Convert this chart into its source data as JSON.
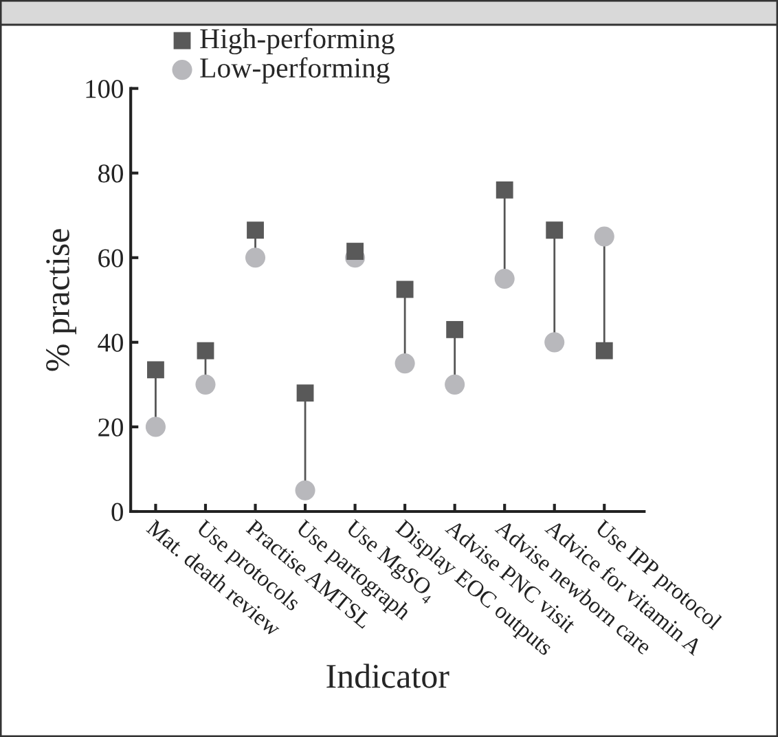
{
  "chart_data": {
    "type": "scatter",
    "xlabel": "Indicator",
    "ylabel": "% practise",
    "categories": [
      "Mat. death review",
      "Use protocols",
      "Practise AMTSL",
      "Use partograph",
      "Use MgSO₄",
      "Display EOC outputs",
      "Advise PNC visit",
      "Advise newborn care",
      "Advice for vitamin A",
      "Use IPP protocol"
    ],
    "series": [
      {
        "name": "High-performing",
        "color": "#595959",
        "marker": "square",
        "values": [
          33.5,
          38,
          66.5,
          28,
          61.5,
          52.5,
          43,
          76,
          66.5,
          38
        ]
      },
      {
        "name": "Low-performing",
        "color": "#b8b8bc",
        "marker": "circle",
        "values": [
          20,
          30,
          60,
          5,
          60,
          35,
          30,
          55,
          40,
          65
        ]
      }
    ],
    "ylim": [
      0,
      100
    ],
    "yticks": [
      0,
      20,
      40,
      60,
      80,
      100
    ],
    "legend": "top left",
    "grid": false
  }
}
